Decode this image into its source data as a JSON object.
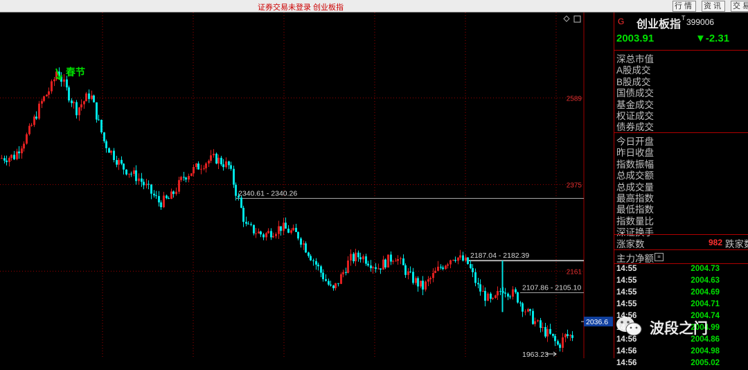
{
  "topbar": {
    "title": "证券交易未登录 创业板指",
    "buttons": [
      "行情",
      "资讯",
      "交易"
    ]
  },
  "chart_data": {
    "type": "candlestick",
    "ylim": [
      1946,
      2800
    ],
    "y_ticks": [
      "2589",
      "2375",
      "2161"
    ],
    "current_marker": "2036.6",
    "annotation": "春节",
    "levels": [
      {
        "label": "2340.61 - 2340.26",
        "value": 2340.6
      },
      {
        "label": "2187.04 - 2182.39",
        "value": 2187.0
      },
      {
        "label": "2107.86 - 2105.10",
        "value": 2107.9
      }
    ],
    "low_label": "1963.23",
    "colors": {
      "up": "#e02020",
      "down": "#00e5e5",
      "grid": "#a00000"
    }
  },
  "panel": {
    "flag": "G",
    "name": "创业板指",
    "superscript": "T",
    "code": "399006",
    "price": "2003.91",
    "change": "▼-2.31",
    "group1": [
      "深总市值",
      "A股成交",
      "B股成交",
      "国债成交",
      "基金成交",
      "权证成交",
      "债券成交"
    ],
    "group2": [
      "今日开盘",
      "昨日收盘",
      "指数振幅",
      "总成交额",
      "总成交量",
      "最高指数",
      "最低指数",
      "指数量比",
      "深证换手"
    ],
    "up_label": "涨家数",
    "up_count": "982",
    "down_label": "跌家数",
    "flow_label": "主力净额",
    "ticks": [
      {
        "time": "14:55",
        "price": "2004.73"
      },
      {
        "time": "14:55",
        "price": "2004.63"
      },
      {
        "time": "14:55",
        "price": "2004.69"
      },
      {
        "time": "14:55",
        "price": "2004.71"
      },
      {
        "time": "14:56",
        "price": "2004.74"
      },
      {
        "time": "14:56",
        "price": "2004.99"
      },
      {
        "time": "14:56",
        "price": "2004.86"
      },
      {
        "time": "14:56",
        "price": "2004.98"
      },
      {
        "time": "14:56",
        "price": "2005.02"
      }
    ]
  },
  "watermark": "波段之门"
}
